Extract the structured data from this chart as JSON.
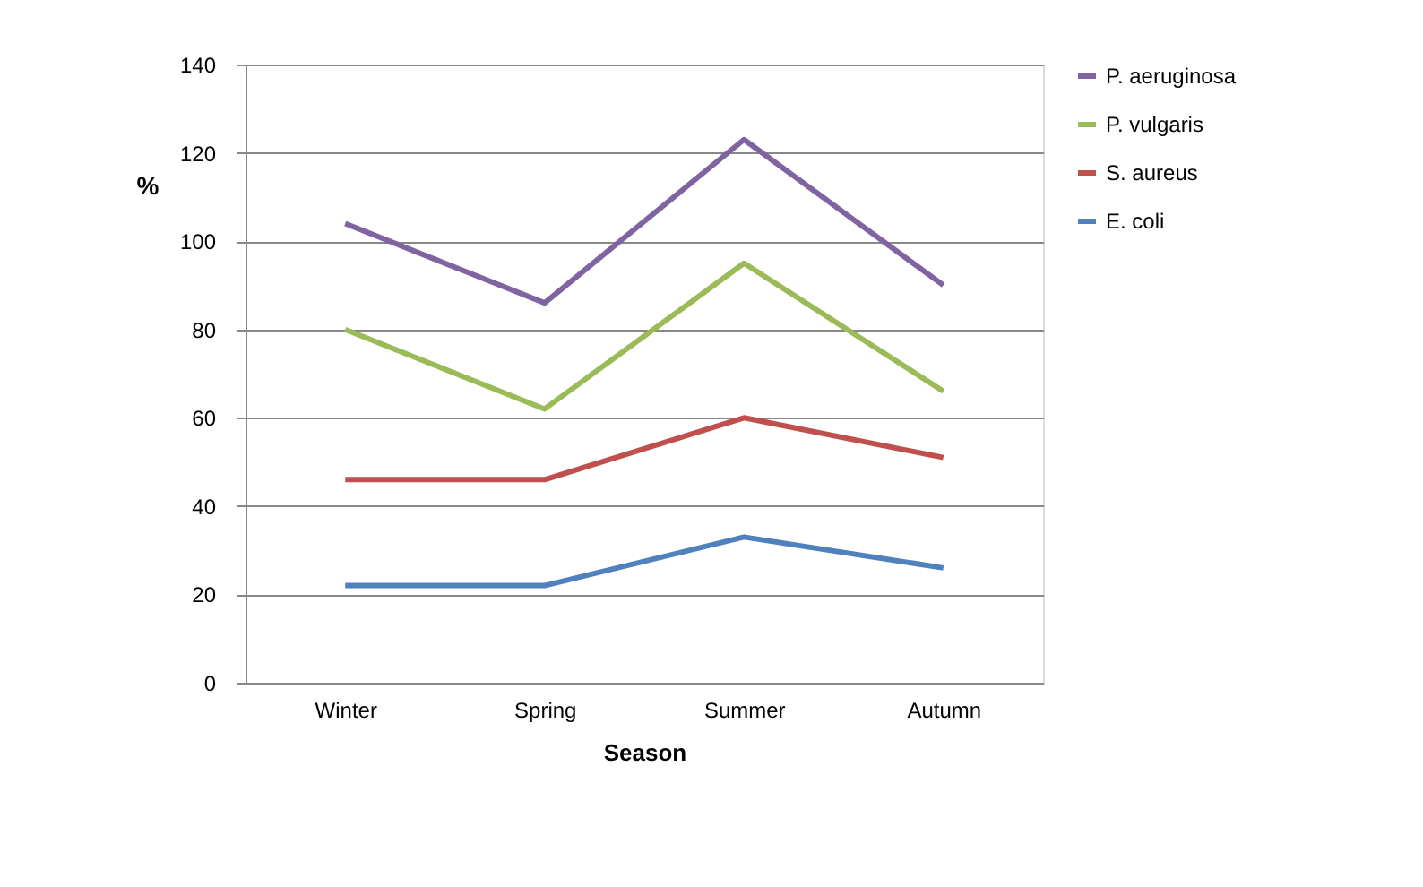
{
  "chart_data": {
    "type": "line",
    "xlabel": "Season",
    "ylabel": "%",
    "categories": [
      "Winter",
      "Spring",
      "Summer",
      "Autumn"
    ],
    "series": [
      {
        "name": "P. aeruginosa",
        "color": "#8064a2",
        "values": [
          104,
          86,
          123,
          90
        ]
      },
      {
        "name": "P. vulgaris",
        "color": "#9bbb59",
        "values": [
          80,
          62,
          95,
          66
        ]
      },
      {
        "name": "S. aureus",
        "color": "#c0504d",
        "values": [
          46,
          46,
          60,
          51
        ]
      },
      {
        "name": "E. coli",
        "color": "#4f81bd",
        "values": [
          22,
          22,
          33,
          26
        ]
      }
    ],
    "ylim": [
      0,
      140
    ],
    "yticks": [
      0,
      20,
      40,
      60,
      80,
      100,
      120,
      140
    ],
    "grid": "y",
    "legend": "right",
    "marker": "none",
    "line_style": "solid"
  }
}
